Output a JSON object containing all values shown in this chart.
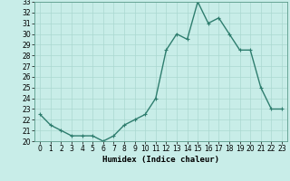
{
  "x": [
    0,
    1,
    2,
    3,
    4,
    5,
    6,
    7,
    8,
    9,
    10,
    11,
    12,
    13,
    14,
    15,
    16,
    17,
    18,
    19,
    20,
    21,
    22,
    23
  ],
  "y": [
    22.5,
    21.5,
    21.0,
    20.5,
    20.5,
    20.5,
    20.0,
    20.5,
    21.5,
    22.0,
    22.5,
    24.0,
    28.5,
    30.0,
    29.5,
    33.0,
    31.0,
    31.5,
    30.0,
    28.5,
    28.5,
    25.0,
    23.0,
    23.0
  ],
  "line_color": "#2e7d6e",
  "marker": "+",
  "marker_size": 3,
  "background_color": "#c8ede8",
  "grid_color": "#aad8d0",
  "xlabel": "Humidex (Indice chaleur)",
  "ylim": [
    20,
    33
  ],
  "xlim": [
    -0.5,
    23.5
  ],
  "yticks": [
    20,
    21,
    22,
    23,
    24,
    25,
    26,
    27,
    28,
    29,
    30,
    31,
    32,
    33
  ],
  "xticks": [
    0,
    1,
    2,
    3,
    4,
    5,
    6,
    7,
    8,
    9,
    10,
    11,
    12,
    13,
    14,
    15,
    16,
    17,
    18,
    19,
    20,
    21,
    22,
    23
  ],
  "tick_fontsize": 5.5,
  "xlabel_fontsize": 6.5,
  "line_width": 1.0
}
